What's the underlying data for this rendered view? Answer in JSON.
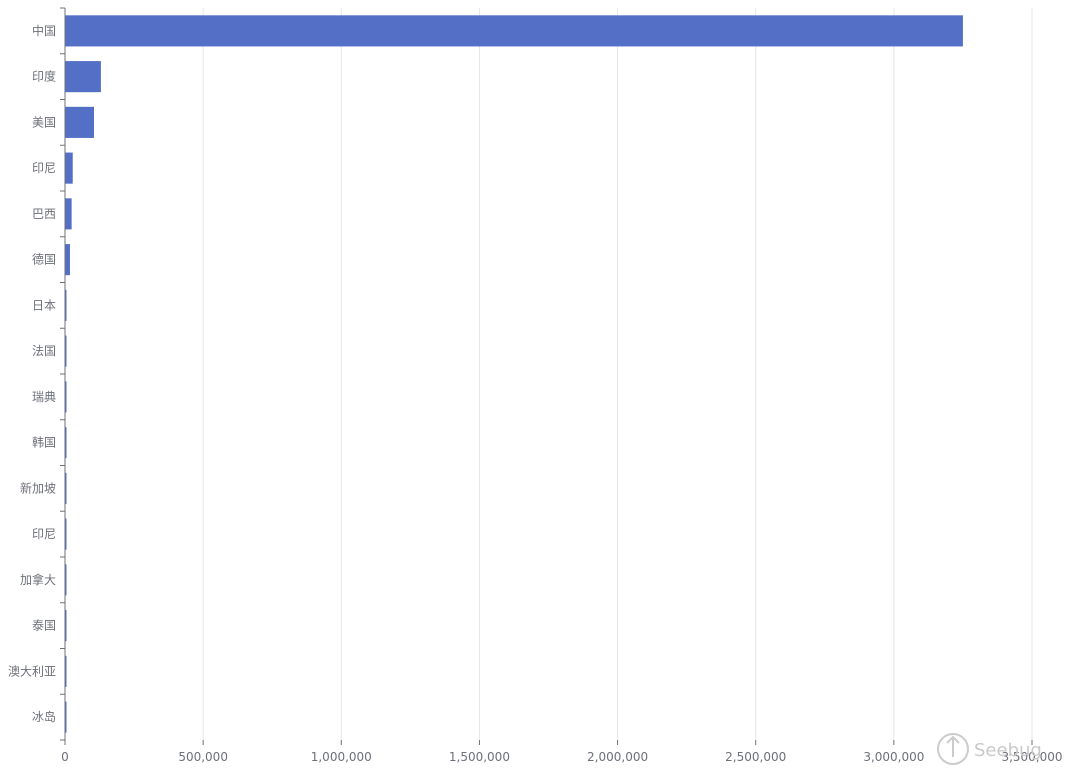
{
  "chart_data": {
    "type": "bar",
    "orientation": "horizontal",
    "categories": [
      "中国",
      "印度",
      "美国",
      "印尼",
      "巴西",
      "德国",
      "日本",
      "法国",
      "瑞典",
      "韩国",
      "新加坡",
      "印尼",
      "加拿大",
      "泰国",
      "澳大利亚",
      "冰岛"
    ],
    "values": [
      3250000,
      130000,
      105000,
      28000,
      24000,
      18000,
      4000,
      3500,
      1500,
      1200,
      1000,
      900,
      700,
      600,
      500,
      400
    ],
    "title": "",
    "xlabel": "",
    "ylabel": "",
    "xlim": [
      0,
      3500000
    ],
    "xticks": [
      "0",
      "500,000",
      "1,000,000",
      "1,500,000",
      "2,000,000",
      "2,500,000",
      "3,000,000",
      "3,500,000"
    ],
    "xtick_values": [
      0,
      500000,
      1000000,
      1500000,
      2000000,
      2500000,
      3000000,
      3500000
    ],
    "grid": "vertical",
    "bar_color": "#5470c6"
  },
  "watermark": {
    "text": "Seebug",
    "icon": "seebug-logo-icon"
  }
}
